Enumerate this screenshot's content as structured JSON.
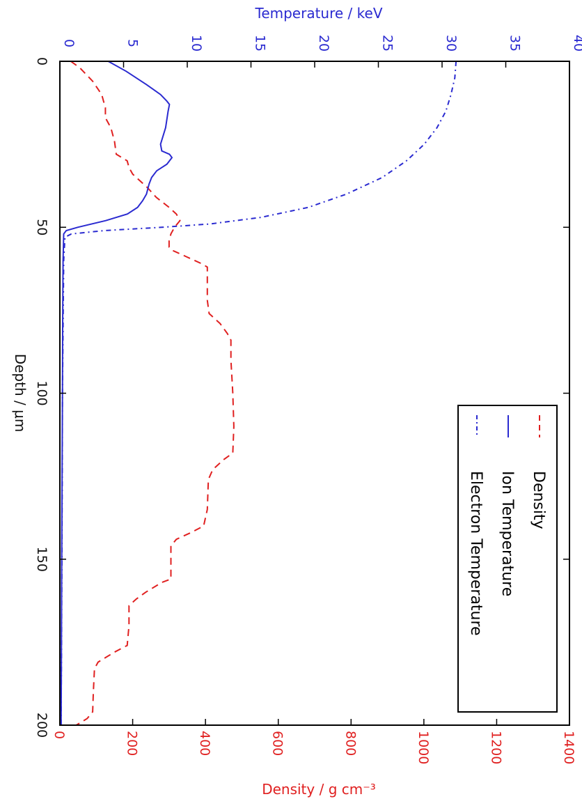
{
  "chart_data": {
    "type": "line",
    "orientation": "rotated",
    "depth_axis": {
      "label": "Depth / μm",
      "range": [
        0,
        200
      ],
      "ticks": [
        "0",
        "50",
        "100",
        "150",
        "200"
      ]
    },
    "temperature_axis": {
      "label": "Temperature / keV",
      "range": [
        0,
        40
      ],
      "ticks": [
        "0",
        "5",
        "10",
        "15",
        "20",
        "25",
        "30",
        "35",
        "40"
      ],
      "color": "#2a2ad0"
    },
    "density_axis": {
      "label": "Density / g cm⁻³",
      "range": [
        0,
        1400
      ],
      "ticks": [
        "0",
        "200",
        "400",
        "600",
        "800",
        "1000",
        "1200",
        "1400"
      ],
      "color": "#e02020"
    },
    "legend": {
      "placement": "top-right",
      "entries": [
        "Density",
        "Ion Temperature",
        "Electron Temperature"
      ]
    },
    "series": [
      {
        "name": "Density",
        "axis": "density",
        "color": "#e02020",
        "style": "dashed",
        "points": [
          [
            0,
            30
          ],
          [
            2,
            55
          ],
          [
            6,
            90
          ],
          [
            10,
            115
          ],
          [
            12,
            120
          ],
          [
            14,
            125
          ],
          [
            17,
            125
          ],
          [
            20,
            140
          ],
          [
            24,
            150
          ],
          [
            28,
            155
          ],
          [
            30,
            185
          ],
          [
            32,
            190
          ],
          [
            34,
            200
          ],
          [
            36,
            220
          ],
          [
            38,
            240
          ],
          [
            41,
            265
          ],
          [
            44,
            300
          ],
          [
            46,
            320
          ],
          [
            48,
            330
          ],
          [
            50,
            315
          ],
          [
            52,
            305
          ],
          [
            54,
            300
          ],
          [
            56,
            300
          ],
          [
            57,
            310
          ],
          [
            59,
            350
          ],
          [
            61,
            390
          ],
          [
            62,
            405
          ],
          [
            66,
            405
          ],
          [
            72,
            405
          ],
          [
            76,
            410
          ],
          [
            79,
            440
          ],
          [
            82,
            460
          ],
          [
            84,
            470
          ],
          [
            90,
            470
          ],
          [
            100,
            475
          ],
          [
            110,
            478
          ],
          [
            118,
            475
          ],
          [
            120,
            450
          ],
          [
            123,
            420
          ],
          [
            126,
            408
          ],
          [
            135,
            405
          ],
          [
            140,
            395
          ],
          [
            142,
            360
          ],
          [
            144,
            320
          ],
          [
            146,
            305
          ],
          [
            152,
            305
          ],
          [
            156,
            305
          ],
          [
            157,
            280
          ],
          [
            160,
            235
          ],
          [
            162,
            210
          ],
          [
            164,
            190
          ],
          [
            170,
            190
          ],
          [
            176,
            185
          ],
          [
            178,
            150
          ],
          [
            181,
            105
          ],
          [
            183,
            95
          ],
          [
            190,
            92
          ],
          [
            196,
            90
          ],
          [
            198,
            75
          ],
          [
            200,
            45
          ]
        ]
      },
      {
        "name": "Ion Temperature",
        "axis": "temperature",
        "color": "#2a2ad0",
        "style": "solid",
        "points": [
          [
            0,
            3.8
          ],
          [
            3,
            5.2
          ],
          [
            7,
            6.8
          ],
          [
            10,
            7.9
          ],
          [
            12,
            8.4
          ],
          [
            13,
            8.6
          ],
          [
            15,
            8.5
          ],
          [
            20,
            8.3
          ],
          [
            25,
            7.9
          ],
          [
            27,
            8.0
          ],
          [
            28,
            8.6
          ],
          [
            29,
            8.8
          ],
          [
            31,
            8.4
          ],
          [
            33,
            7.6
          ],
          [
            35,
            7.2
          ],
          [
            37,
            7.0
          ],
          [
            40,
            6.8
          ],
          [
            42,
            6.5
          ],
          [
            44,
            6.1
          ],
          [
            46,
            5.3
          ],
          [
            48,
            3.6
          ],
          [
            50,
            1.4
          ],
          [
            51,
            0.5
          ],
          [
            52,
            0.3
          ],
          [
            60,
            0.25
          ],
          [
            80,
            0.22
          ],
          [
            100,
            0.2
          ],
          [
            120,
            0.18
          ],
          [
            150,
            0.15
          ],
          [
            180,
            0.12
          ],
          [
            200,
            0.1
          ]
        ]
      },
      {
        "name": "Electron Temperature",
        "axis": "temperature",
        "color": "#2a2ad0",
        "style": "dashdot",
        "points": [
          [
            0,
            31.1
          ],
          [
            5,
            31.0
          ],
          [
            10,
            30.7
          ],
          [
            15,
            30.3
          ],
          [
            20,
            29.6
          ],
          [
            25,
            28.6
          ],
          [
            30,
            27.2
          ],
          [
            35,
            25.3
          ],
          [
            40,
            22.5
          ],
          [
            44,
            19.5
          ],
          [
            47,
            15.8
          ],
          [
            49,
            11.8
          ],
          [
            50,
            8.0
          ],
          [
            51,
            3.5
          ],
          [
            52,
            0.9
          ],
          [
            53,
            0.4
          ],
          [
            60,
            0.3
          ],
          [
            80,
            0.25
          ],
          [
            100,
            0.2
          ],
          [
            130,
            0.18
          ],
          [
            160,
            0.15
          ],
          [
            200,
            0.1
          ]
        ]
      }
    ]
  }
}
